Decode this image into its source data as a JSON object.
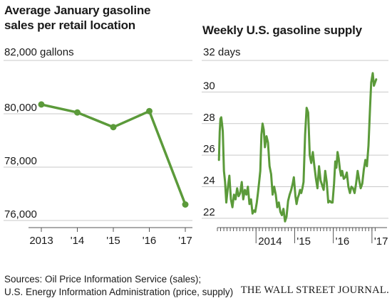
{
  "chart_data": [
    {
      "type": "line",
      "title": "Average January gasoline sales per retail location",
      "unit_label": "82,000 gallons",
      "categories": [
        "2013",
        "'14",
        "'15",
        "'16",
        "'17"
      ],
      "values": [
        80350,
        80050,
        79500,
        80100,
        76600
      ],
      "ylim": [
        76000,
        82000
      ],
      "yticks": [
        {
          "v": 80000,
          "label": "80,000"
        },
        {
          "v": 78000,
          "label": "78,000"
        },
        {
          "v": 76000,
          "label": "76,000"
        }
      ],
      "grid": true,
      "color": "#5b9a3a"
    },
    {
      "type": "line",
      "title": "Weekly U.S. gasoline supply",
      "unit_label": "32 days",
      "ylim": [
        21.5,
        32
      ],
      "yticks": [
        {
          "v": 30,
          "label": "30"
        },
        {
          "v": 28,
          "label": "28"
        },
        {
          "v": 26,
          "label": "26"
        },
        {
          "v": 24,
          "label": "24"
        },
        {
          "v": 22,
          "label": "22"
        }
      ],
      "xlim": [
        2013.0,
        2017.15
      ],
      "xticks": [
        {
          "v": 2014.0,
          "label": "2014"
        },
        {
          "v": 2015.0,
          "label": "'15"
        },
        {
          "v": 2016.0,
          "label": "'16"
        },
        {
          "v": 2017.0,
          "label": "'17"
        }
      ],
      "grid": true,
      "color": "#5b9a3a",
      "x": [
        2013.04,
        2013.06,
        2013.08,
        2013.1,
        2013.12,
        2013.14,
        2013.17,
        2013.2,
        2013.23,
        2013.27,
        2013.31,
        2013.35,
        2013.39,
        2013.43,
        2013.47,
        2013.51,
        2013.55,
        2013.59,
        2013.63,
        2013.67,
        2013.71,
        2013.75,
        2013.79,
        2013.83,
        2013.87,
        2013.91,
        2013.95,
        2013.98,
        2014.02,
        2014.05,
        2014.08,
        2014.11,
        2014.14,
        2014.17,
        2014.2,
        2014.23,
        2014.27,
        2014.31,
        2014.35,
        2014.39,
        2014.43,
        2014.47,
        2014.51,
        2014.55,
        2014.59,
        2014.63,
        2014.67,
        2014.71,
        2014.75,
        2014.79,
        2014.83,
        2014.87,
        2014.91,
        2014.95,
        2014.98,
        2015.02,
        2015.05,
        2015.08,
        2015.11,
        2015.14,
        2015.17,
        2015.2,
        2015.23,
        2015.27,
        2015.31,
        2015.35,
        2015.39,
        2015.43,
        2015.47,
        2015.51,
        2015.55,
        2015.59,
        2015.63,
        2015.67,
        2015.71,
        2015.75,
        2015.79,
        2015.83,
        2015.87,
        2015.91,
        2015.95,
        2015.98,
        2016.02,
        2016.05,
        2016.08,
        2016.11,
        2016.14,
        2016.17,
        2016.2,
        2016.23,
        2016.27,
        2016.31,
        2016.35,
        2016.39,
        2016.43,
        2016.47,
        2016.51,
        2016.55,
        2016.59,
        2016.63,
        2016.67,
        2016.71,
        2016.75,
        2016.79,
        2016.83,
        2016.87,
        2016.91,
        2016.95,
        2016.98,
        2017.02,
        2017.05,
        2017.08,
        2017.11
      ],
      "y": [
        25.7,
        27.5,
        28.3,
        28.4,
        28.0,
        27.5,
        25.0,
        24.3,
        23.0,
        23.9,
        24.7,
        23.2,
        22.7,
        23.5,
        23.2,
        23.9,
        23.4,
        23.6,
        24.3,
        23.2,
        23.8,
        23.5,
        24.0,
        22.9,
        23.2,
        22.3,
        22.5,
        22.4,
        23.0,
        23.6,
        24.3,
        25.0,
        27.3,
        28.0,
        27.6,
        26.5,
        27.2,
        26.8,
        25.3,
        24.8,
        23.5,
        24.0,
        23.5,
        22.7,
        23.0,
        22.4,
        22.2,
        22.6,
        21.8,
        22.1,
        23.1,
        23.5,
        23.8,
        24.2,
        24.6,
        23.4,
        22.9,
        23.3,
        23.5,
        23.8,
        23.6,
        23.9,
        24.3,
        27.3,
        29.0,
        28.7,
        26.0,
        25.5,
        26.2,
        25.3,
        24.5,
        23.9,
        25.3,
        24.4,
        24.1,
        23.8,
        25.0,
        24.3,
        23.0,
        23.1,
        23.0,
        23.0,
        24.2,
        25.6,
        25.2,
        26.2,
        25.8,
        25.1,
        24.7,
        25.0,
        24.5,
        24.6,
        24.9,
        24.0,
        23.6,
        24.0,
        23.9,
        23.6,
        24.2,
        25.0,
        24.4,
        23.9,
        24.2,
        25.1,
        25.7,
        25.3,
        26.6,
        29.0,
        30.6,
        31.2,
        30.4,
        30.6,
        30.8
      ]
    }
  ],
  "footer": {
    "sources_line1": "Sources: Oil Price Information Service (sales);",
    "sources_line2": "U.S. Energy Information Administration (price, supply)",
    "publisher": "THE WALL STREET JOURNAL."
  }
}
